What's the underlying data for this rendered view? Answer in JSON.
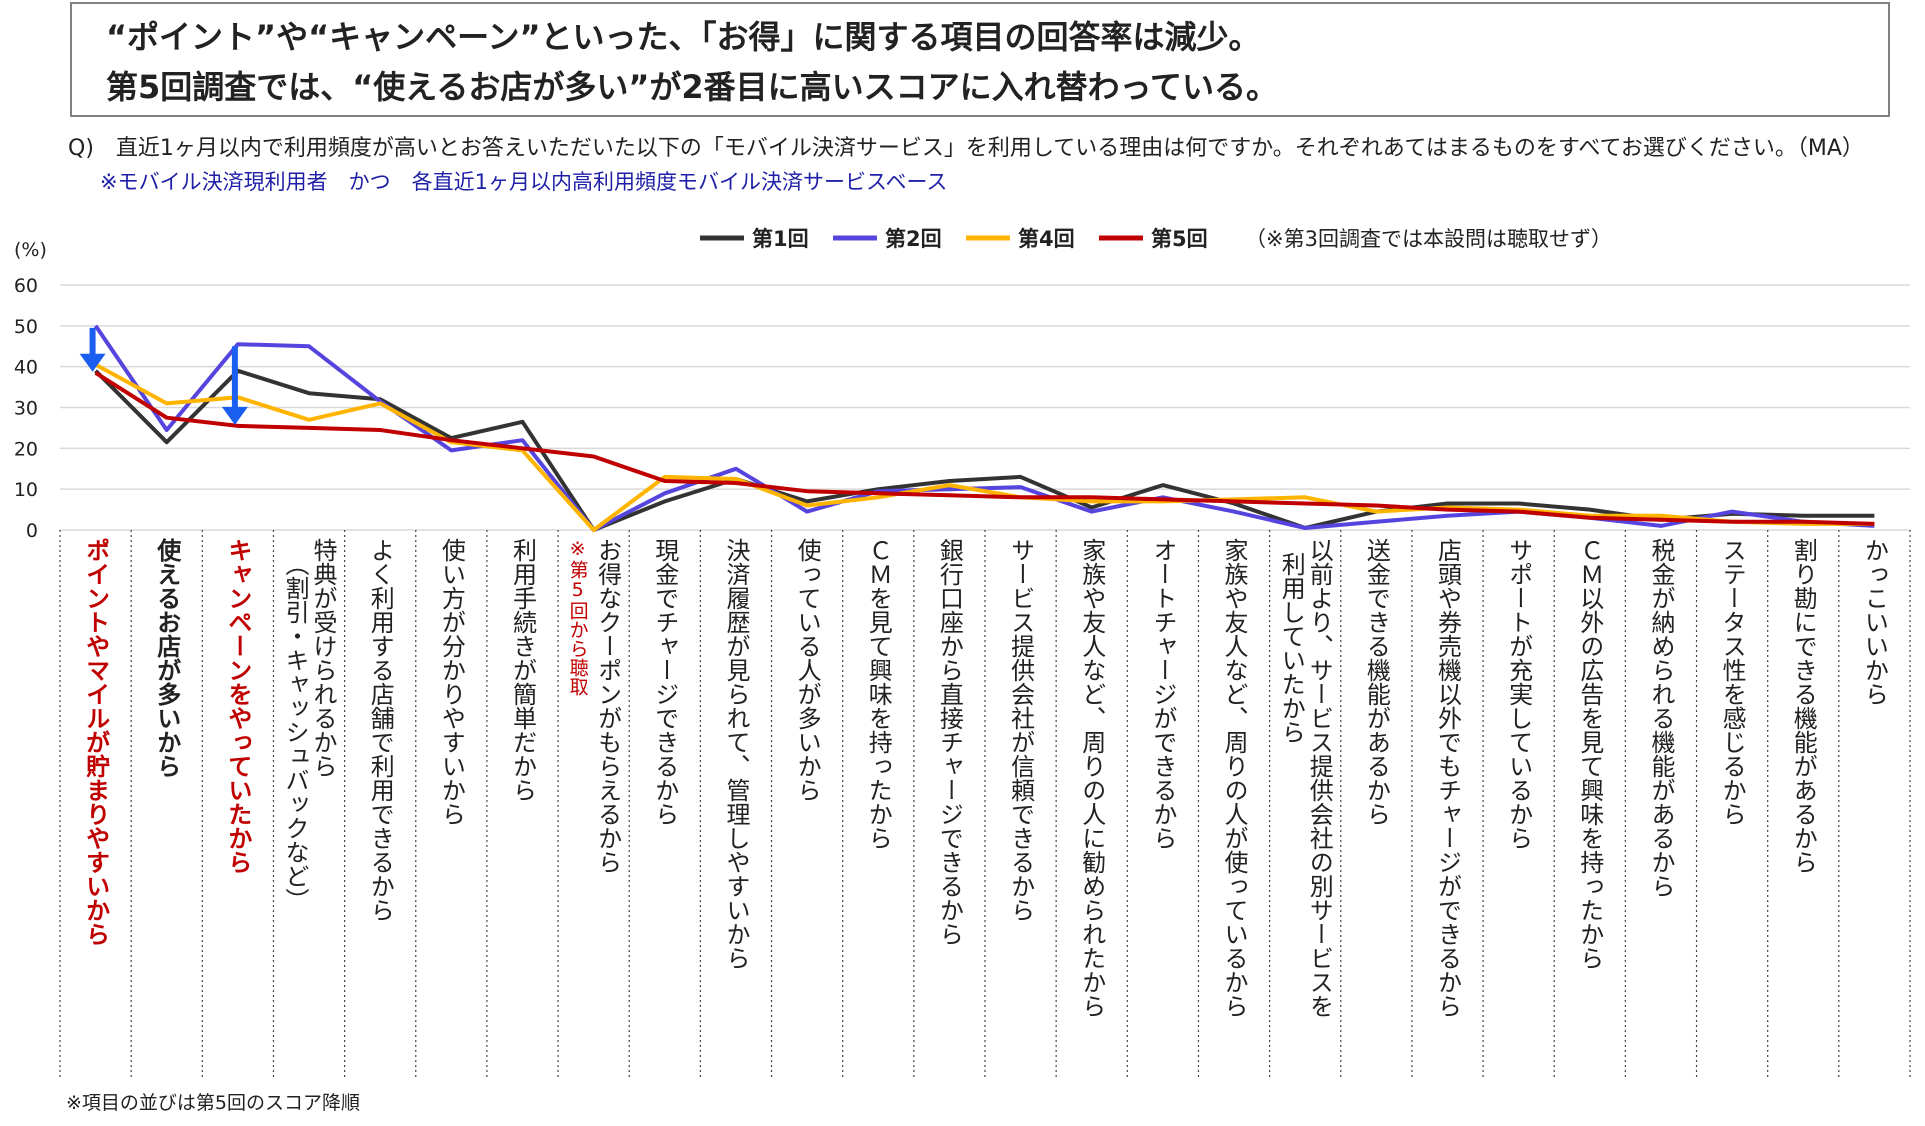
{
  "headline": {
    "line1": "“ポイント”や“キャンペーン”といった、「お得」に関する項目の回答率は減少。",
    "line2": "第5回調査では、“使えるお店が多い”が2番目に高いスコアに入れ替わっている。"
  },
  "question": "Q)　直近1ヶ月以内で利用頻度が高いとお答えいただいた以下の「モバイル決済サービス」を利用している理由は何ですか。それぞれあてはまるものをすべてお選びください。（MA）",
  "base_note": "※モバイル決済現利用者　かつ　各直近1ヶ月以内高利用頻度モバイル決済サービスベース",
  "footnote": "※項目の並びは第5回のスコア降順",
  "legend_note": "（※第3回調査では本設問は聴取せず）",
  "colors": {
    "series1": "#333333",
    "series2": "#5544dd",
    "series4": "#ffb400",
    "series5": "#c00000",
    "highlight_label": "#c00000",
    "arrow": "#1a5ff0",
    "grid": "#d9d9d9"
  },
  "chart_data": {
    "type": "line",
    "ylabel": "(%)",
    "ylim": [
      0,
      60
    ],
    "yticks": [
      "0",
      "10",
      "20",
      "30",
      "40",
      "50",
      "60"
    ],
    "grid": true,
    "legend_position": "top",
    "categories": [
      "ポイントやマイルが貯まりやすいから",
      "使えるお店が多いから",
      "キャンペーンをやっていたから",
      "特典が受けられるから（割引・キャッシュバックなど）",
      "よく利用する店舗で利用できるから",
      "使い方が分かりやすいから",
      "利用手続きが簡単だから",
      "お得なクーポンがもらえるから",
      "現金でチャージできるから",
      "決済履歴が見られて、管理しやすいから",
      "使っている人が多いから",
      "ＣＭを見て興味を持ったから",
      "銀行口座から直接チャージできるから",
      "サービス提供会社が信頼できるから",
      "家族や友人など、周りの人に勧められたから",
      "オートチャージができるから",
      "家族や友人など、周りの人が使っているから",
      "以前より、サービス提供会社の別サービスを利用していたから",
      "送金できる機能があるから",
      "店頭や券売機以外でもチャージができるから",
      "サポートが充実しているから",
      "ＣＭ以外の広告を見て興味を持ったから",
      "税金が納められる機能があるから",
      "ステータス性を感じるから",
      "割り勘にできる機能があるから",
      "かっこいいから"
    ],
    "x_labels": [
      {
        "line1": "ポイントやマイルが貯まりやすいから",
        "line2": "",
        "note": ""
      },
      {
        "line1": "使えるお店が多いから",
        "line2": "",
        "note": ""
      },
      {
        "line1": "キャンペーンをやっていたから",
        "line2": "",
        "note": ""
      },
      {
        "line1": "特典が受けられるから",
        "line2": "（割引・キャッシュバックなど）",
        "note": ""
      },
      {
        "line1": "よく利用する店舗で利用できるから",
        "line2": "",
        "note": ""
      },
      {
        "line1": "使い方が分かりやすいから",
        "line2": "",
        "note": ""
      },
      {
        "line1": "利用手続きが簡単だから",
        "line2": "",
        "note": ""
      },
      {
        "line1": "お得なクーポンがもらえるから",
        "line2": "",
        "note": "※第5回から聴取"
      },
      {
        "line1": "現金でチャージできるから",
        "line2": "",
        "note": ""
      },
      {
        "line1": "決済履歴が見られて、管理しやすいから",
        "line2": "",
        "note": ""
      },
      {
        "line1": "使っている人が多いから",
        "line2": "",
        "note": ""
      },
      {
        "line1": "ＣＭを見て興味を持ったから",
        "line2": "",
        "note": ""
      },
      {
        "line1": "銀行口座から直接チャージできるから",
        "line2": "",
        "note": ""
      },
      {
        "line1": "サービス提供会社が信頼できるから",
        "line2": "",
        "note": ""
      },
      {
        "line1": "家族や友人など、周りの人に勧められたから",
        "line2": "",
        "note": ""
      },
      {
        "line1": "オートチャージができるから",
        "line2": "",
        "note": ""
      },
      {
        "line1": "家族や友人など、周りの人が使っているから",
        "line2": "",
        "note": ""
      },
      {
        "line1": "以前より、サービス提供会社の別サービスを",
        "line2": "利用していたから",
        "note": ""
      },
      {
        "line1": "送金できる機能があるから",
        "line2": "",
        "note": ""
      },
      {
        "line1": "店頭や券売機以外でもチャージができるから",
        "line2": "",
        "note": ""
      },
      {
        "line1": "サポートが充実しているから",
        "line2": "",
        "note": ""
      },
      {
        "line1": "ＣＭ以外の広告を見て興味を持ったから",
        "line2": "",
        "note": ""
      },
      {
        "line1": "税金が納められる機能があるから",
        "line2": "",
        "note": ""
      },
      {
        "line1": "ステータス性を感じるから",
        "line2": "",
        "note": ""
      },
      {
        "line1": "割り勘にできる機能があるから",
        "line2": "",
        "note": ""
      },
      {
        "line1": "かっこいいから",
        "line2": "",
        "note": ""
      }
    ],
    "highlight_categories": [
      0,
      2
    ],
    "bold_categories": [
      0,
      1,
      2
    ],
    "arrows_on_categories": [
      0,
      2
    ],
    "series": [
      {
        "name": "第1回",
        "color": "#333333",
        "values": [
          39,
          21.5,
          39,
          33.5,
          32,
          22.5,
          26.5,
          0,
          7,
          12.5,
          7,
          10,
          12,
          13,
          5.5,
          11,
          6.5,
          0.5,
          4.5,
          6.5,
          6.5,
          5,
          2.5,
          4,
          3.5,
          3.5
        ]
      },
      {
        "name": "第2回",
        "color": "#5544dd",
        "values": [
          50,
          24.5,
          45.5,
          45,
          31.5,
          19.5,
          22,
          0,
          9,
          15,
          4.5,
          9.5,
          10,
          10.5,
          4.5,
          8,
          4.5,
          0.5,
          2,
          3.5,
          4.5,
          3,
          1,
          4.5,
          2,
          1
        ]
      },
      {
        "name": "第4回",
        "color": "#ffb400",
        "values": [
          40.5,
          31,
          32.5,
          27,
          31,
          21.5,
          19.5,
          0,
          13,
          12.5,
          6,
          8,
          11,
          8,
          7,
          7,
          7.5,
          8,
          4.5,
          5.5,
          5,
          3.5,
          3.5,
          2,
          1.5,
          1.5
        ]
      },
      {
        "name": "第5回",
        "color": "#c00000",
        "values": [
          38.5,
          27.5,
          25.5,
          25,
          24.5,
          22,
          20,
          18,
          12,
          11.5,
          9.5,
          9,
          8.5,
          8,
          8,
          7.5,
          7,
          6.5,
          6,
          5,
          4.5,
          3,
          2.5,
          2,
          2,
          1.5
        ]
      }
    ]
  }
}
